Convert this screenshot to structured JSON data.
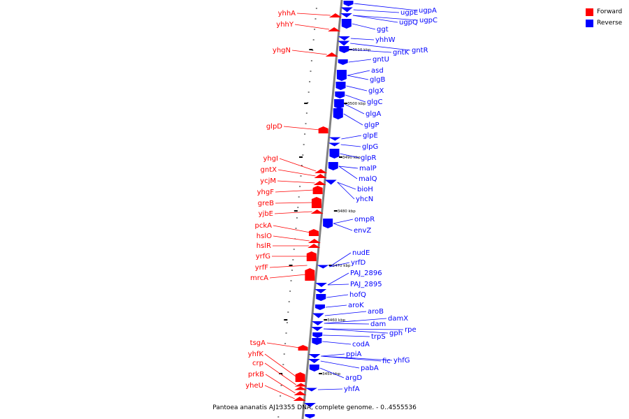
{
  "legend": {
    "forward_label": "Forward",
    "reverse_label": "Reverse",
    "forward_color": "#ff0000",
    "reverse_color": "#0000ff"
  },
  "caption": "Pantoea ananatis AJ13355 DNA, complete genome. - 0..4555536",
  "scale_labels": [
    "3510 kbp",
    "3500 kbp",
    "3490 kbp",
    "3480 kbp",
    "3470 kbp",
    "3460 kbp",
    "3450 kbp"
  ],
  "forward_genes": [
    "yhhA",
    "yhhY",
    "yhgN",
    "glpD",
    "yhgI",
    "gntX",
    "ycjM",
    "yhgF",
    "greB",
    "yjbE",
    "pckA",
    "hslO",
    "hslR",
    "yrfG",
    "yrfF",
    "mrcA",
    "tsgA",
    "yhfK",
    "crp",
    "prkB",
    "yheU"
  ],
  "reverse_genes": [
    "ugpA",
    "ugpE",
    "ugpC",
    "ugpQ",
    "ggt",
    "yhhW",
    "gntR",
    "gntK",
    "gntU",
    "asd",
    "glgB",
    "glgX",
    "glgC",
    "glgA",
    "glgP",
    "glpE",
    "glpG",
    "glpR",
    "malP",
    "malQ",
    "bioH",
    "yhcN",
    "ompR",
    "envZ",
    "nudE",
    "yrfD",
    "PAJ_2896",
    "PAJ_2895",
    "hofQ",
    "aroK",
    "aroB",
    "damX",
    "dam",
    "rpe",
    "gph",
    "trpS",
    "codA",
    "ppiA",
    "fic",
    "yhfG",
    "pabA",
    "argD",
    "yhfA"
  ]
}
